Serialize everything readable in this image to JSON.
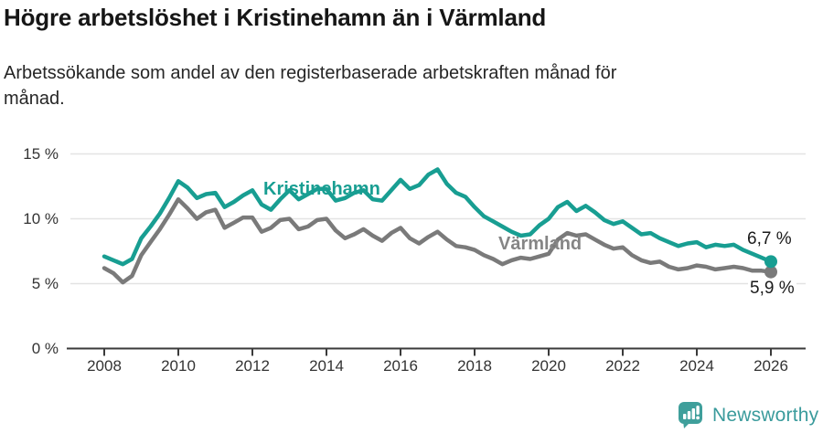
{
  "header": {
    "title": "Högre arbetslöshet i Kristinehamn än i Värmland",
    "subtitle_line1": "Arbetssökande som andel av den registerbaserade arbetskraften månad för",
    "subtitle_line2": "månad."
  },
  "footer": {
    "brand": "Newsworthy",
    "brand_color": "#3a9b9c"
  },
  "chart_data": {
    "type": "line",
    "title": "Högre arbetslöshet i Kristinehamn än i Värmland",
    "subtitle": "Arbetssökande som andel av den registerbaserade arbetskraften månad för månad.",
    "unit": "percent",
    "x_start": 2008,
    "x_step": 0.25,
    "xlim": [
      2007,
      2027
    ],
    "ylim": [
      0,
      15.5
    ],
    "grid": "horizontal",
    "legend_position": "inline-labels",
    "xticks": [
      2008,
      2010,
      2012,
      2014,
      2016,
      2018,
      2020,
      2022,
      2024,
      2026
    ],
    "yticks": [
      {
        "label": "0 %",
        "value": 0
      },
      {
        "label": "5 %",
        "value": 5
      },
      {
        "label": "10 %",
        "value": 10
      },
      {
        "label": "15 %",
        "value": 15
      }
    ],
    "series": [
      {
        "name": "Kristinehamn",
        "color": "#189e92",
        "end_label": "6,7 %",
        "end_value": 6.7,
        "values": [
          7.1,
          6.8,
          6.5,
          6.9,
          8.5,
          9.4,
          10.4,
          11.6,
          12.9,
          12.4,
          11.6,
          11.9,
          12.0,
          10.9,
          11.3,
          11.8,
          12.2,
          11.1,
          10.7,
          11.5,
          12.2,
          11.5,
          11.9,
          12.3,
          12.3,
          11.4,
          11.6,
          12.0,
          12.2,
          11.5,
          11.4,
          12.2,
          13.0,
          12.3,
          12.6,
          13.4,
          13.8,
          12.7,
          12.0,
          11.7,
          10.9,
          10.2,
          9.8,
          9.4,
          9.0,
          8.7,
          8.8,
          9.5,
          10.0,
          10.9,
          11.3,
          10.6,
          11.0,
          10.5,
          9.9,
          9.6,
          9.8,
          9.3,
          8.8,
          8.9,
          8.5,
          8.2,
          7.9,
          8.1,
          8.2,
          7.8,
          8.0,
          7.9,
          8.0,
          7.6,
          7.3,
          7.0,
          6.7
        ]
      },
      {
        "name": "Värmland",
        "color": "#7a7a7a",
        "end_label": "5,9 %",
        "end_value": 5.9,
        "values": [
          6.2,
          5.8,
          5.1,
          5.6,
          7.2,
          8.2,
          9.2,
          10.3,
          11.5,
          10.8,
          10.0,
          10.5,
          10.7,
          9.3,
          9.7,
          10.1,
          10.1,
          9.0,
          9.3,
          9.9,
          10.0,
          9.2,
          9.4,
          9.9,
          10.0,
          9.1,
          8.5,
          8.8,
          9.2,
          8.7,
          8.3,
          8.9,
          9.3,
          8.5,
          8.1,
          8.6,
          9.0,
          8.4,
          7.9,
          7.8,
          7.6,
          7.2,
          6.9,
          6.5,
          6.8,
          7.0,
          6.9,
          7.1,
          7.3,
          8.4,
          8.9,
          8.7,
          8.8,
          8.4,
          8.0,
          7.7,
          7.8,
          7.2,
          6.8,
          6.6,
          6.7,
          6.3,
          6.1,
          6.2,
          6.4,
          6.3,
          6.1,
          6.2,
          6.3,
          6.2,
          6.0,
          6.0,
          5.9
        ]
      }
    ]
  }
}
